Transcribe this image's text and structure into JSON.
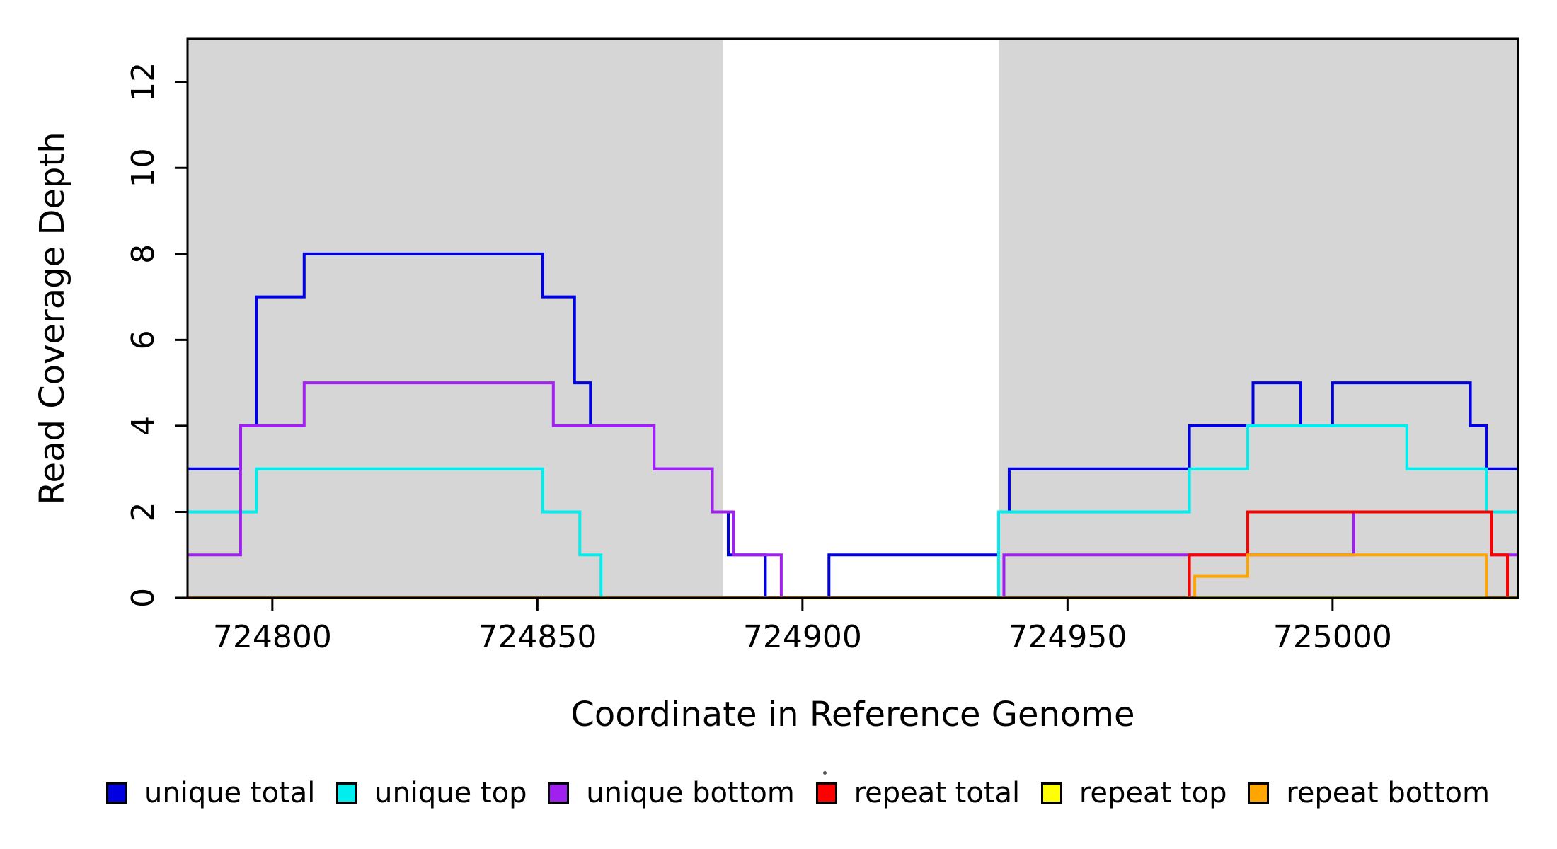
{
  "chart_data": {
    "type": "line",
    "subtype": "step",
    "title": "",
    "xlabel": "Coordinate in Reference Genome",
    "ylabel": "Read Coverage Depth",
    "xlim": [
      724784,
      725035
    ],
    "ylim": [
      0,
      13
    ],
    "xticks": [
      724800,
      724850,
      724900,
      724950,
      725000
    ],
    "yticks": [
      0,
      2,
      4,
      6,
      8,
      10,
      12
    ],
    "grid": false,
    "legend_position": "bottom",
    "plot_bg": "#ffffff",
    "shaded_color": "#d6d6d6",
    "shaded_regions": [
      {
        "x0": 724784,
        "x1": 724885
      },
      {
        "x0": 724937,
        "x1": 725035
      }
    ],
    "series": [
      {
        "name": "unique total",
        "color": "#0000e0",
        "steps": [
          [
            724784,
            3
          ],
          [
            724794,
            4
          ],
          [
            724797,
            7
          ],
          [
            724806,
            8
          ],
          [
            724851,
            7
          ],
          [
            724857,
            5
          ],
          [
            724860,
            4
          ],
          [
            724872,
            3
          ],
          [
            724883,
            2
          ],
          [
            724886,
            1
          ],
          [
            724893,
            0
          ],
          [
            724905,
            1
          ],
          [
            724937,
            2
          ],
          [
            724939,
            3
          ],
          [
            724973,
            4
          ],
          [
            724985,
            5
          ],
          [
            724994,
            4
          ],
          [
            725000,
            5
          ],
          [
            725026,
            4
          ],
          [
            725029,
            3
          ]
        ]
      },
      {
        "name": "unique top",
        "color": "#00eeee",
        "steps": [
          [
            724784,
            2
          ],
          [
            724797,
            3
          ],
          [
            724851,
            2
          ],
          [
            724858,
            1
          ],
          [
            724862,
            0
          ],
          [
            724937,
            2
          ],
          [
            724973,
            3
          ],
          [
            724984,
            4
          ],
          [
            725014,
            3
          ],
          [
            725029,
            2
          ]
        ]
      },
      {
        "name": "unique bottom",
        "color": "#a020f0",
        "steps": [
          [
            724784,
            1
          ],
          [
            724794,
            4
          ],
          [
            724806,
            5
          ],
          [
            724853,
            4
          ],
          [
            724872,
            3
          ],
          [
            724883,
            2
          ],
          [
            724887,
            1
          ],
          [
            724896,
            0
          ],
          [
            724938,
            1
          ],
          [
            725004,
            2
          ],
          [
            725030,
            1
          ]
        ]
      },
      {
        "name": "repeat total",
        "color": "#ff0000",
        "steps": [
          [
            724784,
            0
          ],
          [
            724973,
            1
          ],
          [
            724984,
            2
          ],
          [
            725030,
            1
          ],
          [
            725033,
            0
          ]
        ]
      },
      {
        "name": "repeat top",
        "color": "#ffff00",
        "steps": [
          [
            724784,
            0
          ]
        ]
      },
      {
        "name": "repeat bottom",
        "color": "#ffa500",
        "steps": [
          [
            724784,
            0
          ],
          [
            724974,
            0.5
          ],
          [
            724984,
            1
          ],
          [
            725029,
            0
          ]
        ]
      }
    ]
  }
}
